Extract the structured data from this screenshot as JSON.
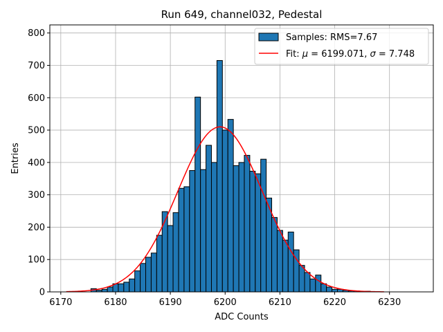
{
  "chart_data": {
    "type": "bar",
    "title": "Run 649, channel032, Pedestal",
    "xlabel": "ADC Counts",
    "ylabel": "Entries",
    "xlim": [
      6168,
      6238
    ],
    "ylim": [
      0,
      825
    ],
    "xticks": [
      6170,
      6180,
      6190,
      6200,
      6210,
      6220,
      6230
    ],
    "yticks": [
      0,
      100,
      200,
      300,
      400,
      500,
      600,
      700,
      800
    ],
    "grid": true,
    "legend_placement": "top-right",
    "bin_edges_start": 6171.5,
    "bin_width": 1,
    "values": [
      0,
      0,
      0,
      0,
      10,
      5,
      8,
      15,
      25,
      25,
      30,
      40,
      65,
      88,
      107,
      120,
      175,
      248,
      205,
      245,
      320,
      325,
      375,
      602,
      378,
      453,
      400,
      715,
      500,
      533,
      390,
      400,
      422,
      373,
      365,
      410,
      290,
      230,
      190,
      160,
      185,
      130,
      82,
      60,
      40,
      52,
      25,
      15,
      8,
      8,
      5,
      3,
      3,
      0,
      2,
      0,
      0,
      0,
      0,
      0,
      0,
      0,
      0
    ],
    "series": [
      {
        "name": "Samples: RMS=7.67",
        "kind": "histogram",
        "color": "#1f77b4"
      },
      {
        "name_prefix": "Fit: ",
        "mu_symbol": "μ",
        "mu_text": " = 6199.071, ",
        "sigma_symbol": "σ",
        "sigma_text": " = 7.748",
        "kind": "gaussian-fit",
        "color": "#ff0000",
        "mu": 6199.071,
        "sigma": 7.748,
        "amplitude": 510,
        "x_range": [
          6171,
          6229
        ]
      }
    ]
  }
}
